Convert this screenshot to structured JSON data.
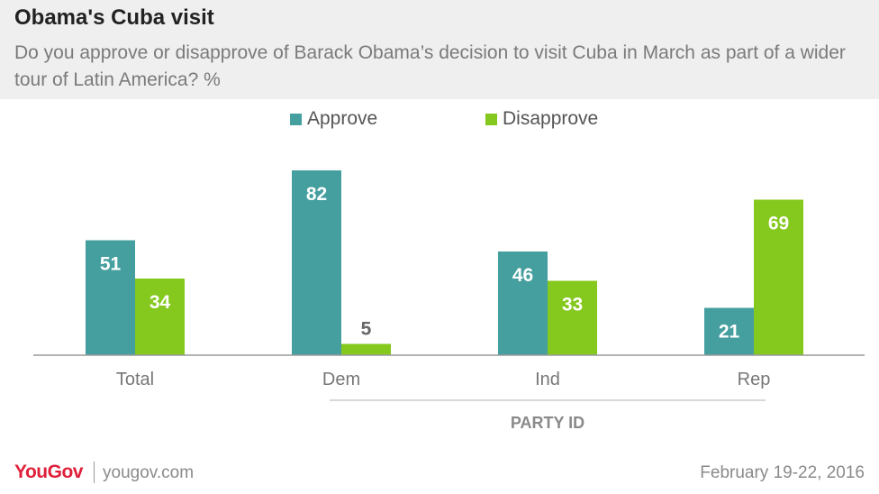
{
  "header": {
    "title": "Obama's Cuba visit",
    "subtitle": "Do you approve or disapprove of Barack Obama’s decision to visit Cuba in March as part of a wider tour of Latin America? %"
  },
  "colors": {
    "approve": "#469f9f",
    "disapprove": "#85c81e",
    "header_bg": "#efefef",
    "brand": "#e0203a"
  },
  "chart_data": {
    "type": "bar",
    "categories": [
      "Total",
      "Dem",
      "Ind",
      "Rep"
    ],
    "series": [
      {
        "name": "Approve",
        "values": [
          51,
          82,
          46,
          21
        ]
      },
      {
        "name": "Disapprove",
        "values": [
          34,
          5,
          33,
          69
        ]
      }
    ],
    "group_label": "PARTY ID",
    "legend_position": "top-center",
    "ylim": [
      0,
      100
    ],
    "grid": false,
    "title": "Obama's Cuba visit",
    "subtitle": "Do you approve or disapprove of Barack Obama’s decision to visit Cuba in March as part of a wider tour of Latin America? %"
  },
  "footer": {
    "logo": "YouGov",
    "site": "yougov.com",
    "date": "February 19-22, 2016"
  }
}
